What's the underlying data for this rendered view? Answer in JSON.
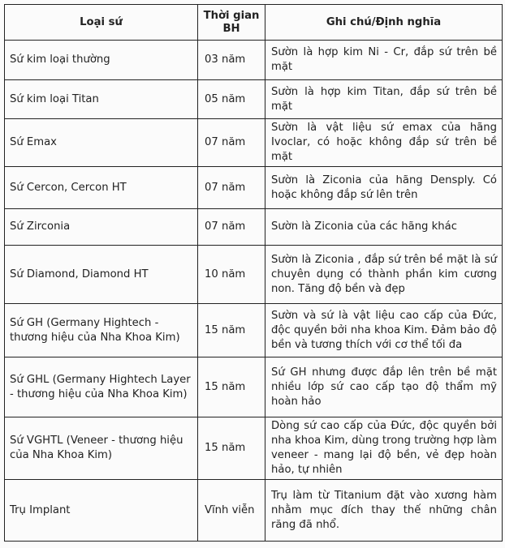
{
  "table": {
    "headers": [
      "Loại sứ",
      "Thời gian BH",
      "Ghi chú/Định nghĩa"
    ],
    "rows": [
      {
        "type": "Sứ kim loại thường",
        "warranty": "03 năm",
        "note": "Sườn là hợp kim Ni - Cr, đắp sứ trên bề mặt"
      },
      {
        "type": "Sứ kim loại Titan",
        "warranty": "05 năm",
        "note": "Sườn là hợp kim Titan, đắp sứ trên bề mặt"
      },
      {
        "type": "Sứ Emax",
        "warranty": "07 năm",
        "note": "Sườn là vật liệu sứ emax của hãng Ivoclar, có hoặc không đắp sứ trên bề mặt"
      },
      {
        "type": "Sứ Cercon, Cercon HT",
        "warranty": "07 năm",
        "note": "Sườn là  Ziconia của hãng Densply. Có hoặc không đắp sứ lên trên"
      },
      {
        "type": "Sứ Zirconia",
        "warranty": "07 năm",
        "note": "Sườn là Ziconia của các hãng khác"
      },
      {
        "type": "Sứ Diamond, Diamond HT",
        "warranty": "10 năm",
        "note": "Sườn là Ziconia , đắp sứ trên bề mặt là sứ chuyên dụng có thành phần kim cương non. Tăng độ bền và đẹp"
      },
      {
        "type": "Sứ GH (Germany Hightech - thương hiệu của Nha Khoa  Kim)",
        "warranty": "15 năm",
        "note": "Sườn và sứ là vật liệu cao cấp của Đức, độc quyền bởi nha khoa Kim. Đảm bảo độ bền và tương thích với cơ thể tối đa"
      },
      {
        "type": "Sứ GHL (Germany Hightech Layer - thương hiệu của Nha Khoa  Kim)",
        "warranty": "15 năm",
        "note": "Sứ GH nhưng được đắp lên trên bề mặt nhiều lớp sứ cao cấp tạo độ thẩm mỹ  hoàn hảo"
      },
      {
        "type": "Sứ VGHTL (Veneer - thương hiệu của Nha Khoa  Kim)",
        "warranty": "15 năm",
        "note": "Dòng sứ cao cấp của Đức, độc quyền bởi nha khoa Kim, dùng trong trường hợp làm veneer - mang lại độ bền, vẻ đẹp hoàn hảo, tự nhiên"
      },
      {
        "type": "Trụ Implant",
        "warranty": "Vĩnh viễn",
        "note": "Trụ làm từ Titanium đặt vào xương hàm nhằm mục đích thay thế những chân răng đã nhổ."
      }
    ]
  }
}
